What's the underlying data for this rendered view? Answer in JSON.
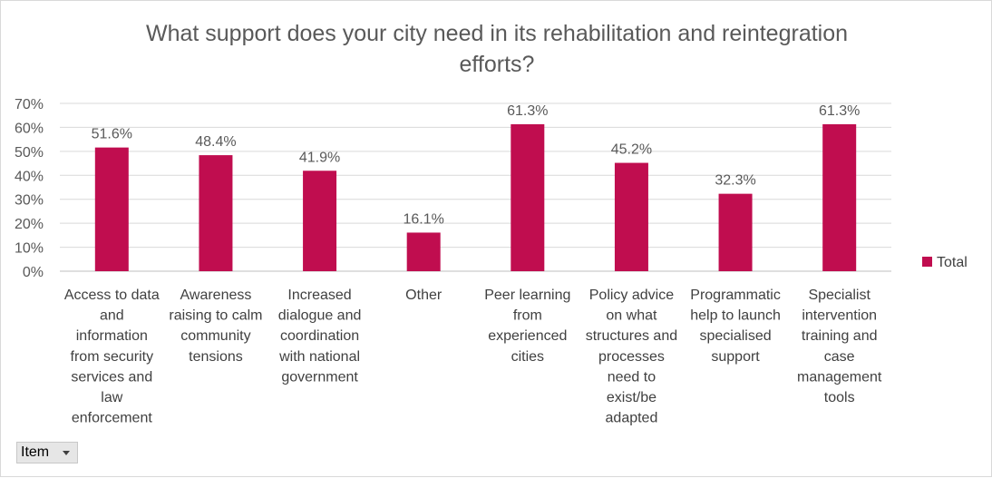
{
  "chart_data": {
    "type": "bar",
    "title_lines": [
      "What support does your city need in its rehabilitation and reintegration",
      "efforts?"
    ],
    "categories": [
      [
        "Access to data",
        "and",
        "information",
        "from security",
        "services and",
        "law",
        "enforcement"
      ],
      [
        "Awareness",
        "raising to calm",
        "community",
        "tensions"
      ],
      [
        "Increased",
        "dialogue and",
        "coordination",
        "with national",
        "government"
      ],
      [
        "Other"
      ],
      [
        "Peer learning",
        "from",
        "experienced",
        "cities"
      ],
      [
        "Policy advice",
        "on what",
        "structures and",
        "processes",
        "need to",
        "exist/be",
        "adapted"
      ],
      [
        "Programmatic",
        "help to launch",
        "specialised",
        "support"
      ],
      [
        "Specialist",
        "intervention",
        "training and",
        "case",
        "management",
        "tools"
      ]
    ],
    "series": [
      {
        "name": "Total",
        "values": [
          51.6,
          48.4,
          41.9,
          16.1,
          61.3,
          45.2,
          32.3,
          61.3
        ],
        "labels": [
          "51.6%",
          "48.4%",
          "41.9%",
          "16.1%",
          "61.3%",
          "45.2%",
          "32.3%",
          "61.3%"
        ]
      }
    ],
    "yticks": [
      "0%",
      "10%",
      "20%",
      "30%",
      "40%",
      "50%",
      "60%",
      "70%"
    ],
    "ylim": [
      0,
      70
    ],
    "grid": true,
    "legend_position": "right",
    "bar_color": "#c00d4f"
  },
  "filter": {
    "label": "Item"
  }
}
